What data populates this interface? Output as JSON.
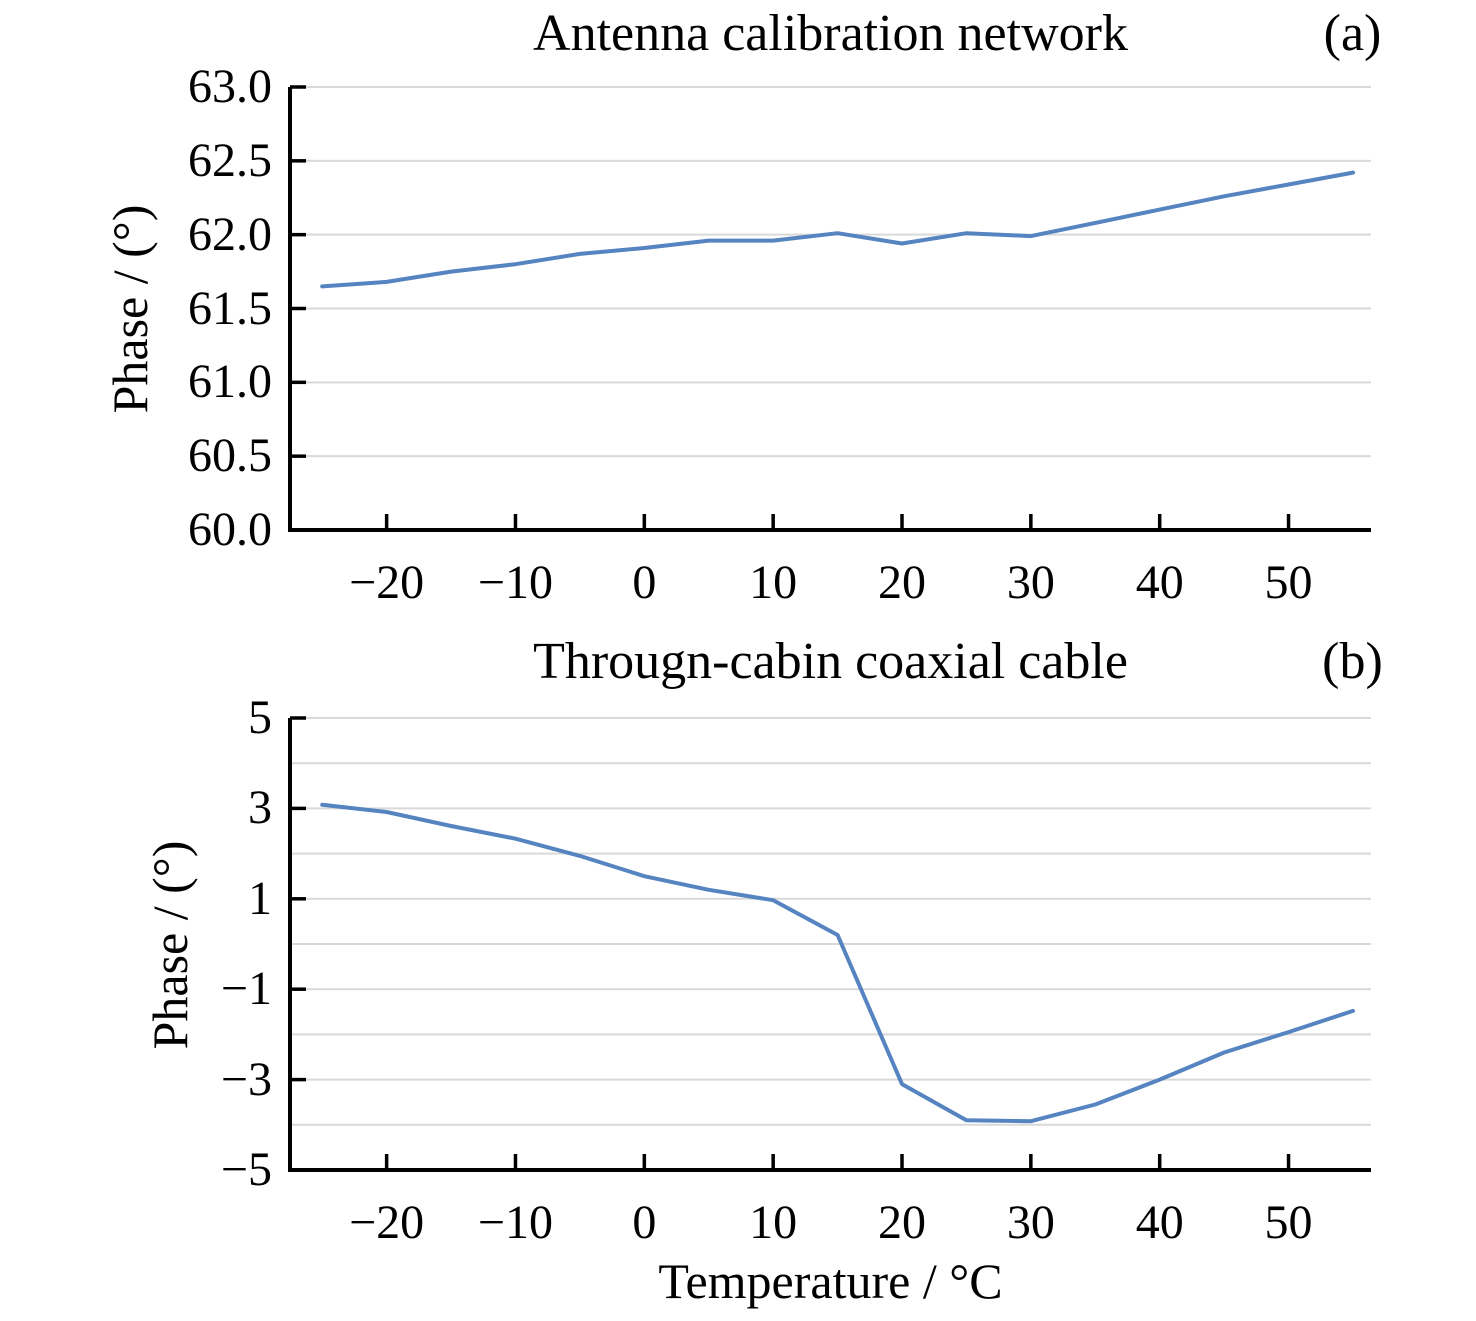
{
  "figure": {
    "background": "#ffffff",
    "xlabel": "Temperature / °C"
  },
  "colors": {
    "line": "#5584c1",
    "grid": "#d9d9d9",
    "axis": "#000000",
    "text": "#000000"
  },
  "charts": [
    {
      "title": "Antenna calibration network",
      "panel_label": "(a)",
      "ylabel": "Phase / (°)",
      "xlabel": "",
      "chart_data": {
        "type": "line",
        "x": [
          -25,
          -20,
          -15,
          -10,
          -5,
          0,
          5,
          10,
          15,
          20,
          25,
          30,
          35,
          40,
          45,
          50,
          55
        ],
        "y": [
          61.65,
          61.68,
          61.75,
          61.8,
          61.87,
          61.91,
          61.96,
          61.96,
          62.01,
          61.94,
          62.01,
          61.99,
          62.08,
          62.17,
          62.26,
          62.34,
          62.42
        ],
        "xlim": [
          -27.5,
          56.4
        ],
        "ylim": [
          60.0,
          63.0
        ],
        "grid_step": 0.5,
        "grid": "horizontal",
        "legend": "none",
        "xtick_values": [
          -20,
          -10,
          0,
          10,
          20,
          30,
          40,
          50
        ],
        "xtick_labels": [
          "−20",
          "−10",
          "0",
          "10",
          "20",
          "30",
          "40",
          "50"
        ],
        "ytick_values": [
          63.0,
          62.5,
          62.0,
          61.5,
          61.0,
          60.5,
          60.0
        ],
        "ytick_labels": [
          "63.0",
          "62.5",
          "62.0",
          "61.5",
          "61.0",
          "60.5",
          "60.0"
        ]
      }
    },
    {
      "title": "Througn-cabin coaxial cable",
      "panel_label": "(b)",
      "ylabel": "Phase / (°)",
      "xlabel": "Temperature / °C",
      "chart_data": {
        "type": "line",
        "x": [
          -25,
          -20,
          -15,
          -10,
          -5,
          0,
          5,
          10,
          15,
          20,
          25,
          30,
          35,
          40,
          45,
          50,
          55
        ],
        "y": [
          3.08,
          2.92,
          2.61,
          2.33,
          1.95,
          1.5,
          1.2,
          0.97,
          0.2,
          -3.1,
          -3.9,
          -3.92,
          -3.55,
          -3.0,
          -2.4,
          -1.95,
          -1.48
        ],
        "xlim": [
          -27.5,
          56.4
        ],
        "ylim": [
          -5,
          5
        ],
        "grid_step": 1,
        "grid": "horizontal",
        "legend": "none",
        "xtick_values": [
          -20,
          -10,
          0,
          10,
          20,
          30,
          40,
          50
        ],
        "xtick_labels": [
          "−20",
          "−10",
          "0",
          "10",
          "20",
          "30",
          "40",
          "50"
        ],
        "ytick_values": [
          5,
          3,
          1,
          -1,
          -3,
          -5
        ],
        "ytick_labels": [
          "5",
          "3",
          "1",
          "−1",
          "−3",
          "−5"
        ]
      }
    }
  ]
}
